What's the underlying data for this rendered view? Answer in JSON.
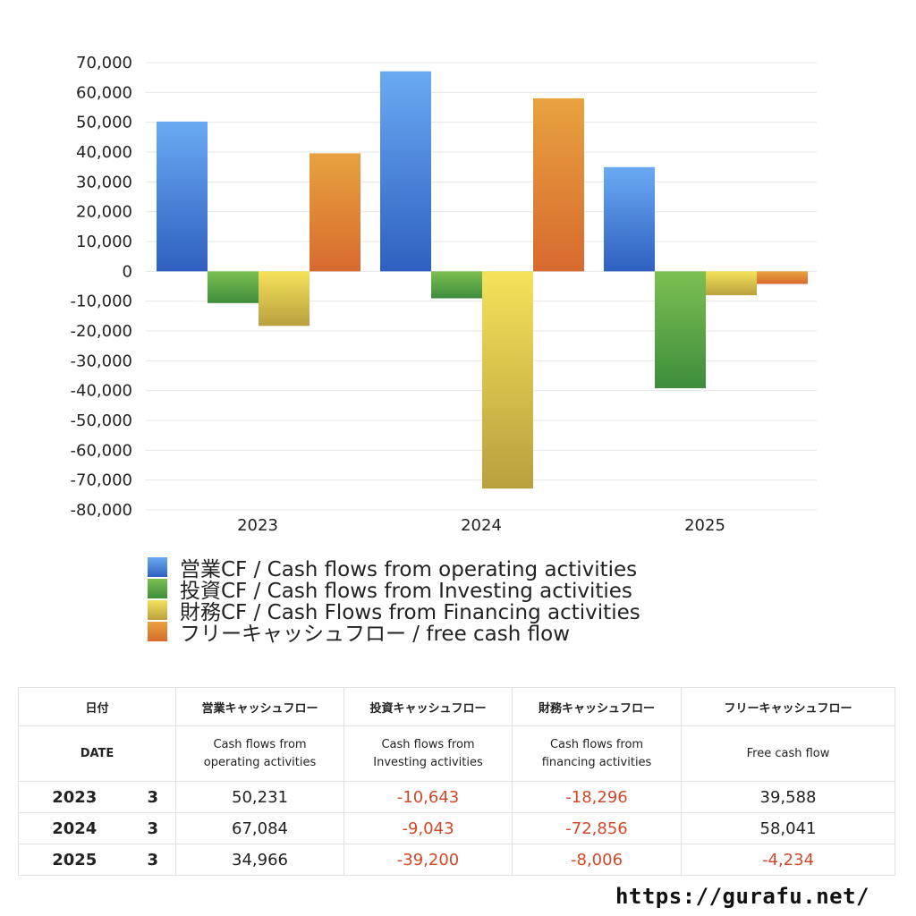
{
  "chart_data": {
    "type": "bar",
    "categories": [
      "2023",
      "2024",
      "2025"
    ],
    "series": [
      {
        "name": "営業CF / Cash flows from operating activities",
        "values": [
          50231,
          67084,
          34966
        ],
        "color_top": "#6aaaf3",
        "color_bottom": "#2f60c0"
      },
      {
        "name": "投資CF / Cash flows from Investing activities",
        "values": [
          -10643,
          -9043,
          -39200
        ],
        "color_top": "#7cc052",
        "color_bottom": "#3e8d3c"
      },
      {
        "name": "財務CF / Cash Flows from Financing activities",
        "values": [
          -18296,
          -72856,
          -8006
        ],
        "color_top": "#f5e25a",
        "color_bottom": "#b8a03e"
      },
      {
        "name": "フリーキャッシュフロー / free cash flow",
        "values": [
          39588,
          58041,
          -4234
        ],
        "color_top": "#e8a23e",
        "color_bottom": "#d76a2f"
      }
    ],
    "ylim": [
      -80000,
      70000
    ],
    "yticks": [
      "70,000",
      "60,000",
      "50,000",
      "40,000",
      "30,000",
      "20,000",
      "10,000",
      "0",
      "-10,000",
      "-20,000",
      "-30,000",
      "-40,000",
      "-50,000",
      "-60,000",
      "-70,000",
      "-80,000"
    ],
    "grid": true,
    "legend": "bottom"
  },
  "table": {
    "header_jp": [
      "日付",
      "営業キャッシュフロー",
      "投資キャッシュフロー",
      "財務キャッシュフロー",
      "フリーキャッシュフロー"
    ],
    "header_en_date": "DATE",
    "header_en": [
      [
        "Cash flows from",
        "operating activities"
      ],
      [
        "Cash flows from",
        "Investing activities"
      ],
      [
        "Cash flows from",
        "financing activities"
      ],
      [
        "Free cash flow"
      ]
    ],
    "rows": [
      {
        "year": "2023",
        "month": "3",
        "values": [
          "50,231",
          "-10,643",
          "-18,296",
          "39,588"
        ]
      },
      {
        "year": "2024",
        "month": "3",
        "values": [
          "67,084",
          "-9,043",
          "-72,856",
          "58,041"
        ]
      },
      {
        "year": "2025",
        "month": "3",
        "values": [
          "34,966",
          "-39,200",
          "-8,006",
          "-4,234"
        ]
      }
    ]
  },
  "source": "https://gurafu.net/"
}
